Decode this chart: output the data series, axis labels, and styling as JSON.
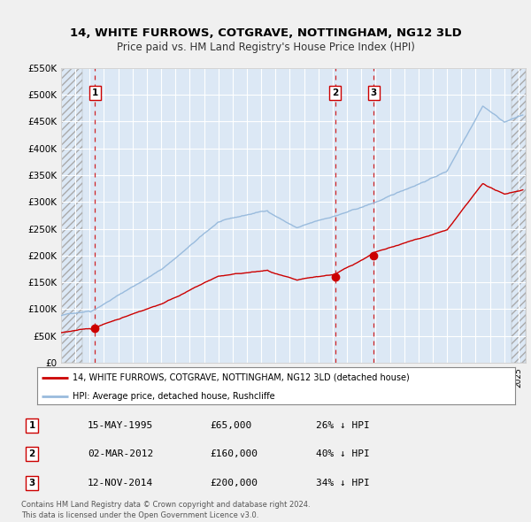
{
  "title": "14, WHITE FURROWS, COTGRAVE, NOTTINGHAM, NG12 3LD",
  "subtitle": "Price paid vs. HM Land Registry's House Price Index (HPI)",
  "ylim": [
    0,
    550000
  ],
  "yticks": [
    0,
    50000,
    100000,
    150000,
    200000,
    250000,
    300000,
    350000,
    400000,
    450000,
    500000,
    550000
  ],
  "ytick_labels": [
    "£0",
    "£50K",
    "£100K",
    "£150K",
    "£200K",
    "£250K",
    "£300K",
    "£350K",
    "£400K",
    "£450K",
    "£500K",
    "£550K"
  ],
  "xlim_start": 1993.0,
  "xlim_end": 2025.5,
  "sale_dates": [
    1995.37,
    2012.17,
    2014.87
  ],
  "sale_prices": [
    65000,
    160000,
    200000
  ],
  "sale_labels": [
    "1",
    "2",
    "3"
  ],
  "hpi_color": "#99bbdd",
  "sale_color": "#cc0000",
  "vline_color": "#cc0000",
  "bg_color": "#f0f4f8",
  "plot_bg_color": "#dce8f5",
  "legend_label_sale": "14, WHITE FURROWS, COTGRAVE, NOTTINGHAM, NG12 3LD (detached house)",
  "legend_label_hpi": "HPI: Average price, detached house, Rushcliffe",
  "table_data": [
    [
      "1",
      "15-MAY-1995",
      "£65,000",
      "26% ↓ HPI"
    ],
    [
      "2",
      "02-MAR-2012",
      "£160,000",
      "40% ↓ HPI"
    ],
    [
      "3",
      "12-NOV-2014",
      "£200,000",
      "34% ↓ HPI"
    ]
  ],
  "footnote": "Contains HM Land Registry data © Crown copyright and database right 2024.\nThis data is licensed under the Open Government Licence v3.0."
}
